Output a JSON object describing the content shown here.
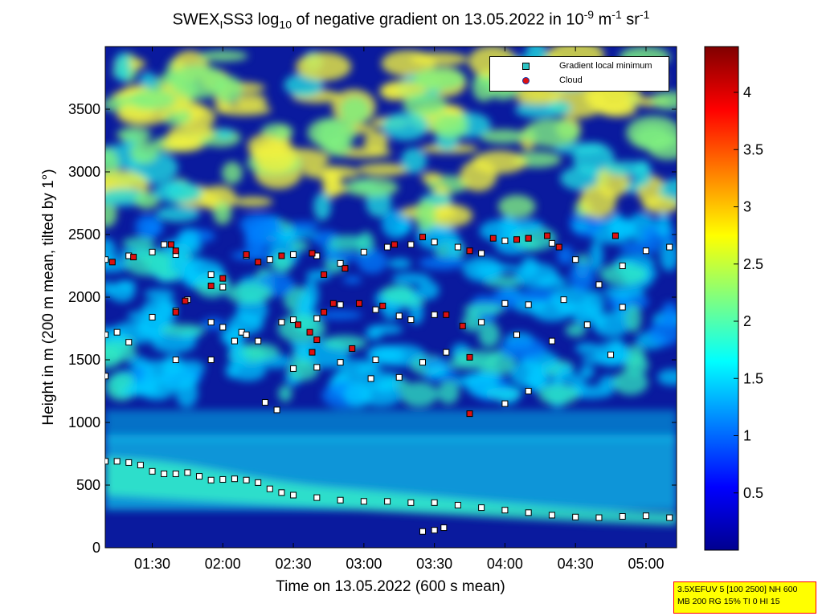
{
  "title": {
    "prefix": "SWEX",
    "sub1": "I",
    "mid": "SS3 log",
    "sub2": "10",
    "text": " of negative gradient on 13.05.2022 in 10",
    "sup1": "-9",
    "unit1": " m",
    "sup2": "-1",
    "unit2": " sr",
    "sup3": "-1"
  },
  "legend": {
    "items": [
      {
        "label": "Gradient local minimum",
        "color": "#2ec4c4"
      },
      {
        "label": "Cloud",
        "color": "#dd1111"
      }
    ]
  },
  "infobox": {
    "line1": "3.5XEFUV 5 [100 2500] NH 600",
    "line2": "MB 200 RG 15% TI 0 HI 15"
  },
  "chart_data": {
    "type": "heatmap",
    "title": "SWEX_I SS3 log10 of negative gradient on 13.05.2022 in 10^-9 m^-1 sr^-1",
    "xlabel": "Time on 13.05.2022 (600 s mean)",
    "ylabel": "Height in m (200 m mean, tilted by 1°)",
    "x_tick_labels": [
      "01:30",
      "02:00",
      "02:30",
      "03:00",
      "03:30",
      "04:00",
      "04:30",
      "05:00"
    ],
    "x_tick_minutes": [
      90,
      120,
      150,
      180,
      210,
      240,
      270,
      300
    ],
    "xlim_minutes": [
      70,
      313
    ],
    "y_ticks": [
      0,
      500,
      1000,
      1500,
      2000,
      2500,
      3000,
      3500
    ],
    "ylim": [
      0,
      4000
    ],
    "colorbar": {
      "ticks": [
        "0.5",
        "1",
        "1.5",
        "2",
        "2.5",
        "3",
        "3.5",
        "4"
      ],
      "tick_values": [
        0.5,
        1,
        1.5,
        2,
        2.5,
        3,
        3.5,
        4
      ],
      "range": [
        0,
        4.4
      ],
      "colormap": "jet"
    },
    "series": [
      {
        "name": "Gradient local minimum",
        "points": [
          [
            70,
            690
          ],
          [
            75,
            690
          ],
          [
            80,
            680
          ],
          [
            85,
            660
          ],
          [
            90,
            610
          ],
          [
            95,
            590
          ],
          [
            100,
            590
          ],
          [
            105,
            600
          ],
          [
            110,
            570
          ],
          [
            115,
            540
          ],
          [
            120,
            545
          ],
          [
            125,
            550
          ],
          [
            130,
            540
          ],
          [
            135,
            520
          ],
          [
            140,
            470
          ],
          [
            145,
            440
          ],
          [
            150,
            420
          ],
          [
            160,
            400
          ],
          [
            170,
            380
          ],
          [
            180,
            370
          ],
          [
            190,
            370
          ],
          [
            200,
            360
          ],
          [
            210,
            360
          ],
          [
            220,
            340
          ],
          [
            230,
            320
          ],
          [
            240,
            300
          ],
          [
            250,
            280
          ],
          [
            260,
            260
          ],
          [
            270,
            245
          ],
          [
            280,
            240
          ],
          [
            290,
            250
          ],
          [
            300,
            255
          ],
          [
            310,
            240
          ],
          [
            70,
            2300
          ],
          [
            80,
            2330
          ],
          [
            90,
            2360
          ],
          [
            95,
            2420
          ],
          [
            100,
            2340
          ],
          [
            115,
            2180
          ],
          [
            120,
            2080
          ],
          [
            130,
            2330
          ],
          [
            140,
            2300
          ],
          [
            150,
            2340
          ],
          [
            160,
            2330
          ],
          [
            170,
            2270
          ],
          [
            180,
            2360
          ],
          [
            190,
            2400
          ],
          [
            200,
            2420
          ],
          [
            210,
            2440
          ],
          [
            220,
            2400
          ],
          [
            230,
            2350
          ],
          [
            240,
            2450
          ],
          [
            250,
            2470
          ],
          [
            260,
            2430
          ],
          [
            270,
            2300
          ],
          [
            280,
            2100
          ],
          [
            290,
            2250
          ],
          [
            300,
            2370
          ],
          [
            310,
            2400
          ],
          [
            70,
            1700
          ],
          [
            75,
            1720
          ],
          [
            80,
            1640
          ],
          [
            90,
            1840
          ],
          [
            100,
            1890
          ],
          [
            105,
            1980
          ],
          [
            115,
            1800
          ],
          [
            120,
            1760
          ],
          [
            128,
            1720
          ],
          [
            135,
            1650
          ],
          [
            145,
            1800
          ],
          [
            150,
            1820
          ],
          [
            160,
            1830
          ],
          [
            170,
            1940
          ],
          [
            178,
            1950
          ],
          [
            185,
            1900
          ],
          [
            195,
            1850
          ],
          [
            200,
            1820
          ],
          [
            210,
            1860
          ],
          [
            230,
            1800
          ],
          [
            240,
            1950
          ],
          [
            250,
            1940
          ],
          [
            265,
            1980
          ],
          [
            275,
            1780
          ],
          [
            290,
            1920
          ],
          [
            100,
            1500
          ],
          [
            115,
            1500
          ],
          [
            125,
            1650
          ],
          [
            130,
            1700
          ],
          [
            150,
            1430
          ],
          [
            160,
            1440
          ],
          [
            170,
            1480
          ],
          [
            185,
            1500
          ],
          [
            205,
            1480
          ],
          [
            215,
            1560
          ],
          [
            245,
            1700
          ],
          [
            260,
            1650
          ],
          [
            285,
            1540
          ],
          [
            70,
            1370
          ],
          [
            183,
            1350
          ],
          [
            195,
            1360
          ],
          [
            250,
            1250
          ],
          [
            240,
            1150
          ],
          [
            143,
            1100
          ],
          [
            138,
            1160
          ],
          [
            205,
            130
          ],
          [
            210,
            140
          ],
          [
            214,
            160
          ]
        ]
      },
      {
        "name": "Cloud",
        "points": [
          [
            73,
            2280
          ],
          [
            82,
            2320
          ],
          [
            98,
            2420
          ],
          [
            100,
            2370
          ],
          [
            130,
            2340
          ],
          [
            135,
            2280
          ],
          [
            145,
            2330
          ],
          [
            158,
            2350
          ],
          [
            163,
            2180
          ],
          [
            172,
            2230
          ],
          [
            193,
            2420
          ],
          [
            205,
            2480
          ],
          [
            225,
            2370
          ],
          [
            235,
            2470
          ],
          [
            245,
            2460
          ],
          [
            250,
            2470
          ],
          [
            258,
            2490
          ],
          [
            263,
            2400
          ],
          [
            287,
            2490
          ],
          [
            100,
            1880
          ],
          [
            104,
            1970
          ],
          [
            152,
            1780
          ],
          [
            157,
            1720
          ],
          [
            160,
            1660
          ],
          [
            163,
            1880
          ],
          [
            167,
            1950
          ],
          [
            178,
            1950
          ],
          [
            188,
            1930
          ],
          [
            215,
            1860
          ],
          [
            222,
            1770
          ],
          [
            158,
            1560
          ],
          [
            175,
            1590
          ],
          [
            225,
            1520
          ],
          [
            225,
            1070
          ],
          [
            120,
            2150
          ],
          [
            115,
            2090
          ]
        ]
      }
    ],
    "heatmap_description": "jet colormap field; dark blue background with cyan/green bands near 0-1000 m, turbulent cyan/green layers 1300-2500 m, yellow patches above 2700 m"
  }
}
